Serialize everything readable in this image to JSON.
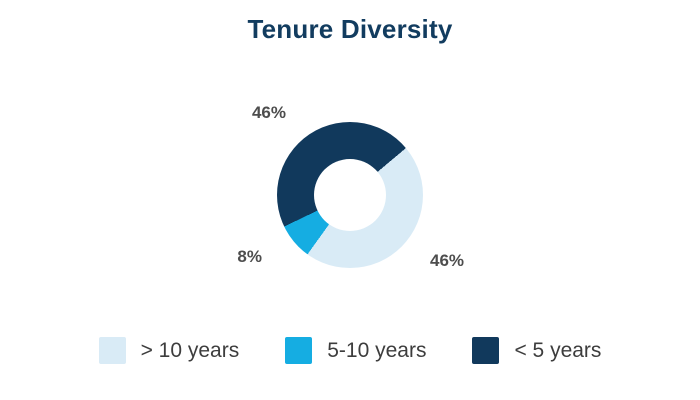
{
  "title": "Tenure Diversity",
  "colors": {
    "title": "#123c5f",
    "percent_labels": "#4d4d4d",
    "legend_text": "#3d3d3d",
    "background": "#ffffff"
  },
  "chart_data": {
    "type": "pie",
    "subtype": "donut",
    "title": "Tenure Diversity",
    "categories": [
      "> 10 years",
      "5-10 years",
      "< 5 years"
    ],
    "values": [
      46,
      8,
      46
    ],
    "unit": "%",
    "colors": [
      "#d9ebf6",
      "#15ade2",
      "#11395c"
    ],
    "display_labels": [
      "46%",
      "8%",
      "46%"
    ],
    "start_angle_deg": 50,
    "donut_hole_ratio": 0.49,
    "legend_position": "bottom"
  },
  "legend": {
    "items": [
      {
        "label": "> 10 years"
      },
      {
        "label": "5-10 years"
      },
      {
        "label": "< 5 years"
      }
    ]
  }
}
